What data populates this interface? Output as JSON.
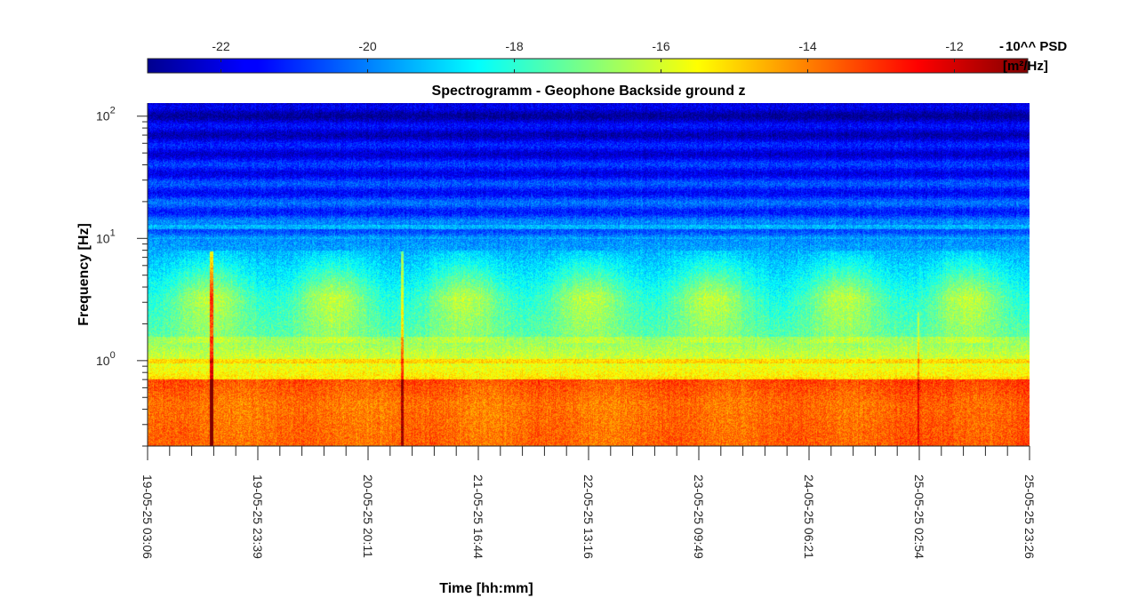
{
  "chart_data": {
    "type": "heatmap",
    "title": "Spectrogramm - Geophone Backside ground z",
    "xlabel": "Time [hh:mm]",
    "ylabel": "Frequency [Hz]",
    "y_scale": "log",
    "ylim": [
      0.2,
      128
    ],
    "y_ticks": [
      {
        "value": 1,
        "label_base": "10",
        "label_exp": "0"
      },
      {
        "value": 10,
        "label_base": "10",
        "label_exp": "1"
      },
      {
        "value": 100,
        "label_base": "10",
        "label_exp": "2"
      }
    ],
    "x_ticks": [
      "19-05-25 03:06",
      "19-05-25 23:39",
      "20-05-25 20:11",
      "21-05-25 16:44",
      "22-05-25 13:16",
      "23-05-25 09:49",
      "24-05-25 06:21",
      "25-05-25 02:54",
      "25-05-25 23:26"
    ],
    "x_minor_per_major": 4,
    "colorbar": {
      "colormap": "jet",
      "range": [
        -23,
        -11
      ],
      "ticks": [
        "-22",
        "-20",
        "-18",
        "-16",
        "-14",
        "-12"
      ],
      "tick_values": [
        -22,
        -20,
        -18,
        -16,
        -14,
        -12
      ],
      "label_line1": "10^^ PSD",
      "label_line2": "[m²/Hz]",
      "scale_sign": "-"
    },
    "features": {
      "daily_activity_peaks_x_fraction": [
        0.07,
        0.21,
        0.36,
        0.5,
        0.64,
        0.79,
        0.93
      ],
      "activity_band_hz": [
        2,
        6
      ],
      "line_at_hz": 1.0,
      "lowfreq_band_hz": [
        0.2,
        0.7
      ],
      "spike_x_fraction": [
        0.072,
        0.288
      ],
      "spike_x_fraction_minor": [
        0.873
      ]
    }
  }
}
